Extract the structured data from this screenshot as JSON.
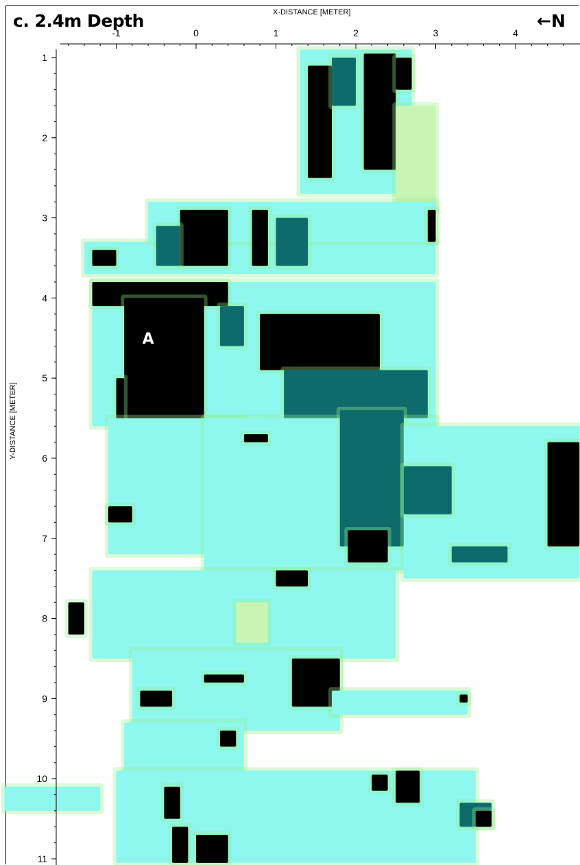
{
  "panel_title": "c. 2.4m Depth",
  "north_arrow": "←N",
  "colors": {
    "background": "#ffffff",
    "low": "#c8f5b4",
    "edge": "#96ef8c",
    "mid": "#8ef7ee",
    "high": "#0d6b6b",
    "peak": "#000000",
    "annotation_text": "#ffffff"
  },
  "chart_data": {
    "type": "heatmap",
    "xlabel": "X-DISTANCE [METER]",
    "ylabel": "Y-DISTANCE [METER]",
    "xlim": [
      -2.4,
      4.8
    ],
    "ylim": [
      0.85,
      11.05
    ],
    "x_ticks": [
      "-1",
      "0",
      "1",
      "2",
      "3",
      "4"
    ],
    "y_ticks": [
      "1",
      "2",
      "3",
      "4",
      "5",
      "6",
      "7",
      "8",
      "9",
      "10",
      "11"
    ],
    "annotations": [
      {
        "label": "A",
        "x": -0.6,
        "y": 4.5
      }
    ],
    "level_scale": [
      "low",
      "mid",
      "high",
      "peak"
    ],
    "cells": [
      {
        "x0": 1.3,
        "x1": 2.7,
        "y0": 0.9,
        "y1": 2.7,
        "level": "mid"
      },
      {
        "x0": 1.4,
        "x1": 1.7,
        "y0": 1.1,
        "y1": 2.5,
        "level": "peak"
      },
      {
        "x0": 2.1,
        "x1": 2.5,
        "y0": 0.95,
        "y1": 2.4,
        "level": "peak"
      },
      {
        "x0": 1.7,
        "x1": 2.0,
        "y0": 1.0,
        "y1": 1.6,
        "level": "high"
      },
      {
        "x0": 2.5,
        "x1": 2.7,
        "y0": 1.0,
        "y1": 1.4,
        "level": "peak"
      },
      {
        "x0": 2.5,
        "x1": 3.0,
        "y0": 1.6,
        "y1": 2.9,
        "level": "low"
      },
      {
        "x0": -1.4,
        "x1": 3.0,
        "y0": 3.3,
        "y1": 3.7,
        "level": "mid"
      },
      {
        "x0": -0.6,
        "x1": 3.0,
        "y0": 2.8,
        "y1": 3.3,
        "level": "mid"
      },
      {
        "x0": -0.2,
        "x1": 0.4,
        "y0": 2.9,
        "y1": 3.6,
        "level": "peak"
      },
      {
        "x0": 0.7,
        "x1": 0.9,
        "y0": 2.9,
        "y1": 3.6,
        "level": "peak"
      },
      {
        "x0": -0.5,
        "x1": -0.2,
        "y0": 3.1,
        "y1": 3.6,
        "level": "high"
      },
      {
        "x0": -1.3,
        "x1": -1.0,
        "y0": 3.4,
        "y1": 3.6,
        "level": "peak"
      },
      {
        "x0": 1.0,
        "x1": 1.4,
        "y0": 3.0,
        "y1": 3.6,
        "level": "high"
      },
      {
        "x0": 2.9,
        "x1": 3.0,
        "y0": 2.9,
        "y1": 3.3,
        "level": "peak"
      },
      {
        "x0": -1.3,
        "x1": 3.0,
        "y0": 3.8,
        "y1": 5.6,
        "level": "mid"
      },
      {
        "x0": -1.3,
        "x1": 0.4,
        "y0": 3.8,
        "y1": 4.1,
        "level": "peak"
      },
      {
        "x0": -0.9,
        "x1": 0.1,
        "y0": 4.0,
        "y1": 7.1,
        "level": "peak"
      },
      {
        "x0": -1.0,
        "x1": -0.9,
        "y0": 5.0,
        "y1": 5.9,
        "level": "peak"
      },
      {
        "x0": 0.8,
        "x1": 2.3,
        "y0": 4.2,
        "y1": 4.9,
        "level": "peak"
      },
      {
        "x0": 1.1,
        "x1": 2.9,
        "y0": 4.9,
        "y1": 5.5,
        "level": "high"
      },
      {
        "x0": 0.3,
        "x1": 0.6,
        "y0": 4.1,
        "y1": 4.6,
        "level": "high"
      },
      {
        "x0": -1.1,
        "x1": 0.6,
        "y0": 5.5,
        "y1": 7.2,
        "level": "mid"
      },
      {
        "x0": 0.1,
        "x1": 3.0,
        "y0": 5.5,
        "y1": 7.4,
        "level": "mid"
      },
      {
        "x0": -1.1,
        "x1": -0.8,
        "y0": 6.6,
        "y1": 6.8,
        "level": "peak"
      },
      {
        "x0": 1.8,
        "x1": 2.6,
        "y0": 5.4,
        "y1": 7.1,
        "level": "high"
      },
      {
        "x0": 1.9,
        "x1": 2.4,
        "y0": 6.9,
        "y1": 7.3,
        "level": "peak"
      },
      {
        "x0": 0.6,
        "x1": 0.9,
        "y0": 5.7,
        "y1": 5.8,
        "level": "peak"
      },
      {
        "x0": 2.6,
        "x1": 4.8,
        "y0": 5.6,
        "y1": 7.5,
        "level": "mid"
      },
      {
        "x0": 4.4,
        "x1": 4.8,
        "y0": 5.8,
        "y1": 7.1,
        "level": "peak"
      },
      {
        "x0": 2.6,
        "x1": 3.2,
        "y0": 6.1,
        "y1": 6.7,
        "level": "high"
      },
      {
        "x0": 3.2,
        "x1": 3.9,
        "y0": 7.1,
        "y1": 7.3,
        "level": "high"
      },
      {
        "x0": -1.3,
        "x1": 2.5,
        "y0": 7.4,
        "y1": 8.5,
        "level": "mid"
      },
      {
        "x0": 0.5,
        "x1": 0.9,
        "y0": 7.8,
        "y1": 8.3,
        "level": "low"
      },
      {
        "x0": -1.6,
        "x1": -1.4,
        "y0": 7.8,
        "y1": 8.2,
        "level": "peak"
      },
      {
        "x0": 1.0,
        "x1": 1.4,
        "y0": 7.4,
        "y1": 7.6,
        "level": "peak"
      },
      {
        "x0": -0.8,
        "x1": 1.8,
        "y0": 8.4,
        "y1": 9.4,
        "level": "mid"
      },
      {
        "x0": 1.2,
        "x1": 1.8,
        "y0": 8.5,
        "y1": 9.1,
        "level": "peak"
      },
      {
        "x0": -0.7,
        "x1": -0.3,
        "y0": 8.9,
        "y1": 9.1,
        "level": "peak"
      },
      {
        "x0": 0.1,
        "x1": 0.6,
        "y0": 8.7,
        "y1": 8.8,
        "level": "peak"
      },
      {
        "x0": 1.7,
        "x1": 3.4,
        "y0": 8.9,
        "y1": 9.2,
        "level": "mid"
      },
      {
        "x0": 3.3,
        "x1": 3.4,
        "y0": 8.95,
        "y1": 9.05,
        "level": "peak"
      },
      {
        "x0": -0.9,
        "x1": 0.6,
        "y0": 9.3,
        "y1": 10.0,
        "level": "mid"
      },
      {
        "x0": 0.3,
        "x1": 0.5,
        "y0": 9.4,
        "y1": 9.6,
        "level": "peak"
      },
      {
        "x0": -1.0,
        "x1": 3.5,
        "y0": 9.9,
        "y1": 11.05,
        "level": "mid"
      },
      {
        "x0": -2.4,
        "x1": -1.2,
        "y0": 10.1,
        "y1": 10.4,
        "level": "mid"
      },
      {
        "x0": 2.5,
        "x1": 2.8,
        "y0": 9.9,
        "y1": 10.3,
        "level": "peak"
      },
      {
        "x0": 2.2,
        "x1": 2.4,
        "y0": 9.95,
        "y1": 10.15,
        "level": "peak"
      },
      {
        "x0": -0.4,
        "x1": -0.2,
        "y0": 10.1,
        "y1": 10.5,
        "level": "peak"
      },
      {
        "x0": 0.0,
        "x1": 0.4,
        "y0": 10.7,
        "y1": 11.05,
        "level": "peak"
      },
      {
        "x0": -0.3,
        "x1": -0.1,
        "y0": 10.6,
        "y1": 11.05,
        "level": "peak"
      },
      {
        "x0": 3.3,
        "x1": 3.7,
        "y0": 10.3,
        "y1": 10.6,
        "level": "high"
      },
      {
        "x0": 3.5,
        "x1": 3.7,
        "y0": 10.4,
        "y1": 10.6,
        "level": "peak"
      }
    ]
  }
}
